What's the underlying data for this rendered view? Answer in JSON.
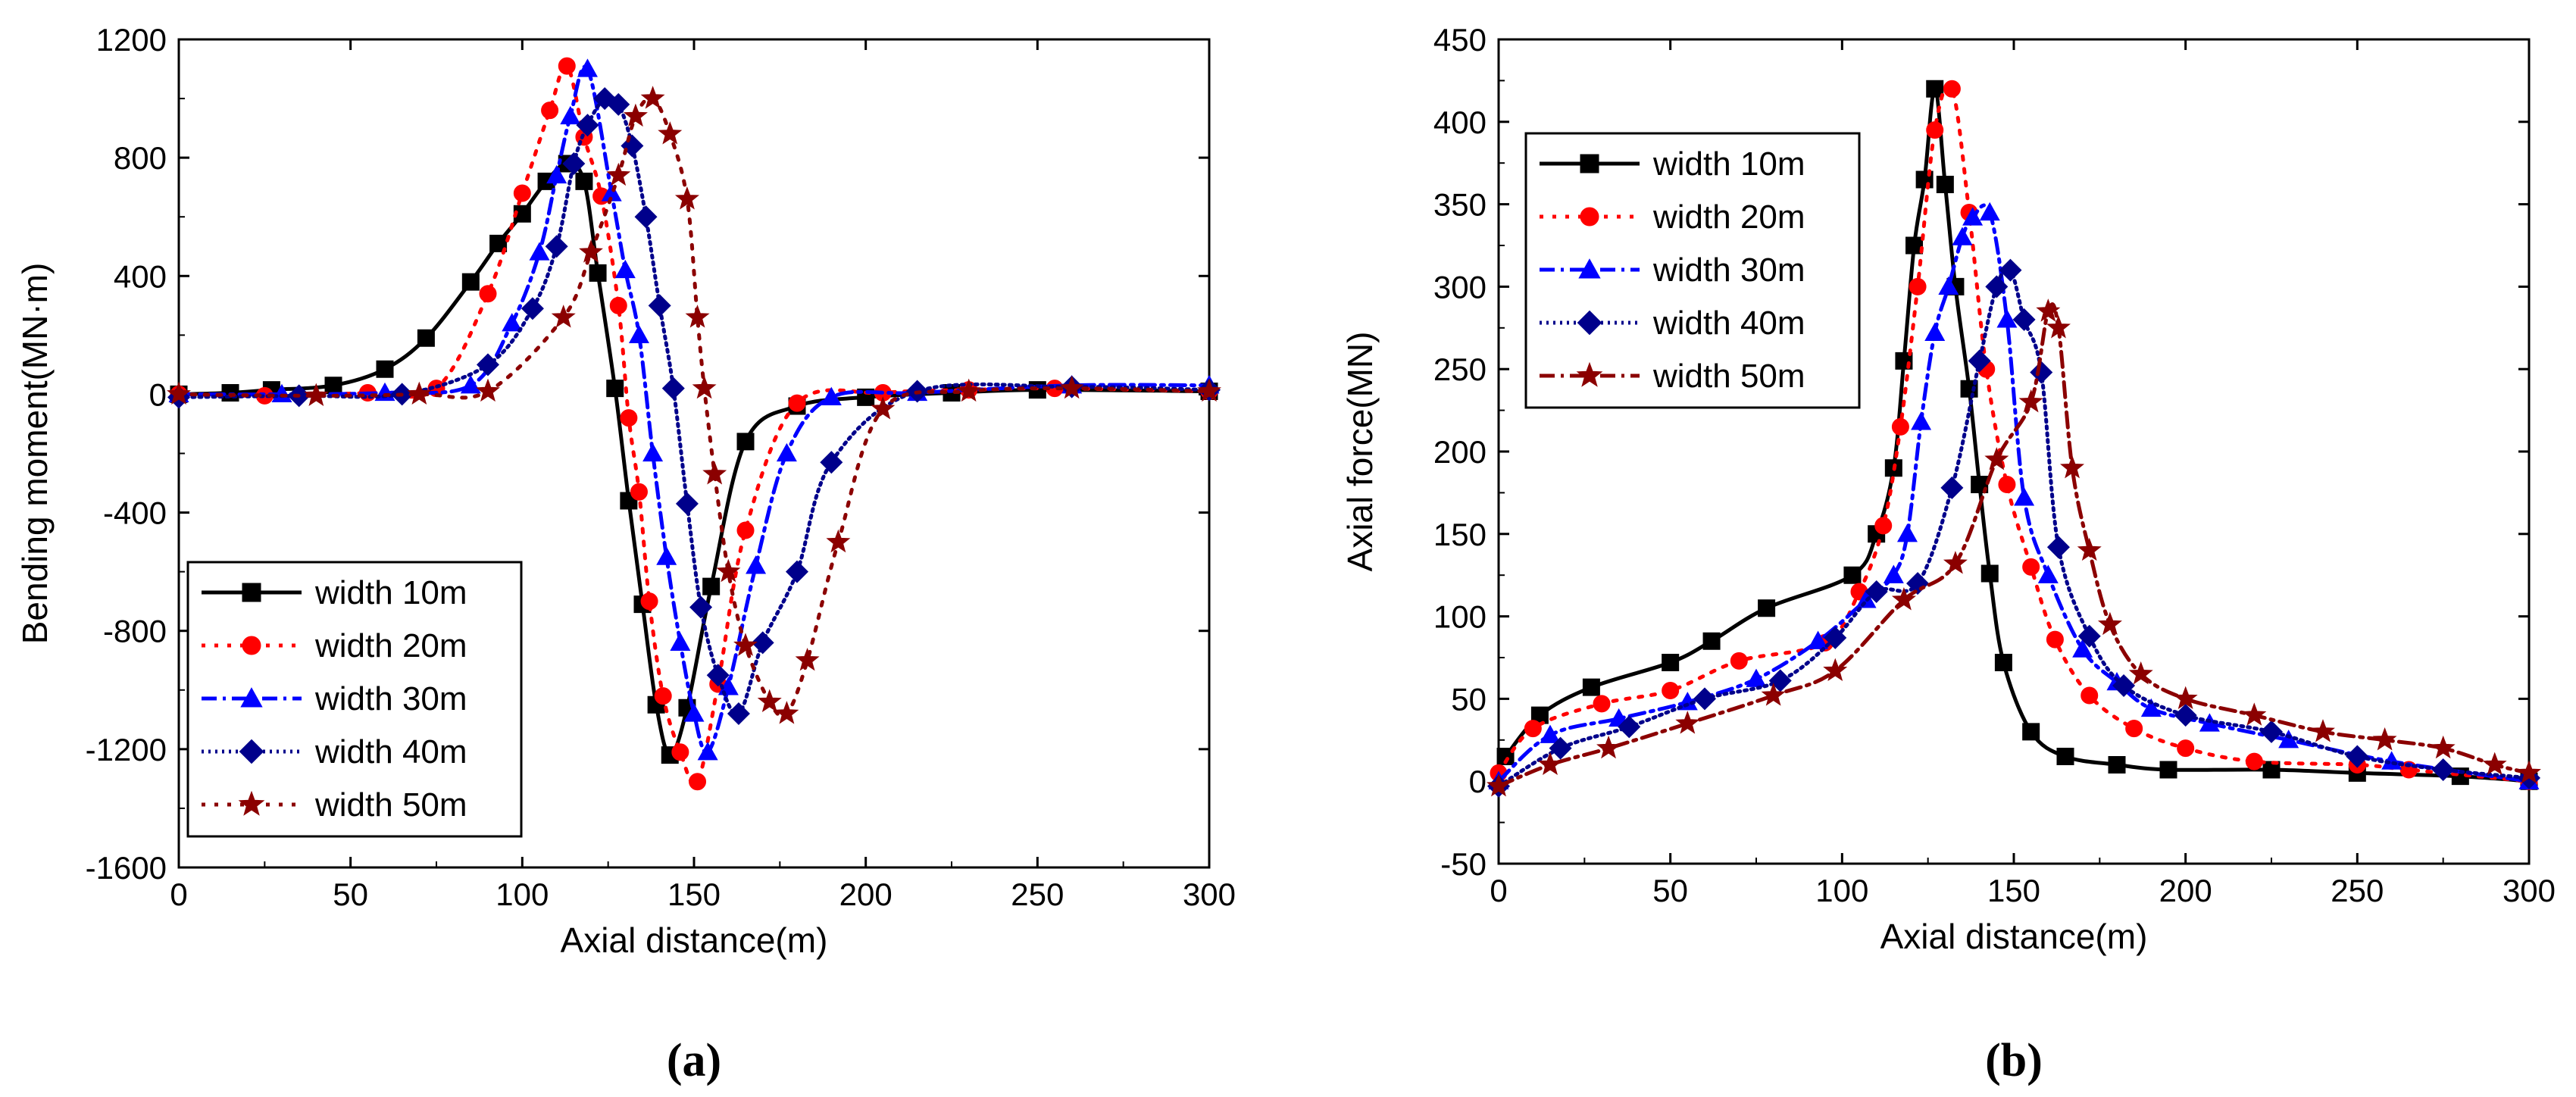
{
  "chart_data": [
    {
      "type": "line",
      "panel_label": "(a)",
      "xlabel": "Axial distance(m)",
      "ylabel": "Bending moment(MN·m)",
      "xlim": [
        0,
        300
      ],
      "ylim": [
        -1600,
        1200
      ],
      "xticks": [
        "0",
        "50",
        "100",
        "150",
        "200",
        "250",
        "300"
      ],
      "yticks": [
        "-1600",
        "-1200",
        "-800",
        "-400",
        "0",
        "400",
        "800",
        "1200"
      ],
      "grid": false,
      "legend_position": "bottom-left",
      "series": [
        {
          "name": "width 10m",
          "color": "#000000",
          "marker": "square",
          "dash": "solid",
          "x": [
            0,
            15,
            27,
            45,
            60,
            72,
            85,
            93,
            100,
            107,
            113,
            118,
            122,
            127,
            131,
            135,
            139,
            143,
            148,
            155,
            165,
            180,
            200,
            225,
            250,
            300
          ],
          "y": [
            0,
            5,
            15,
            30,
            85,
            190,
            380,
            510,
            610,
            720,
            780,
            720,
            410,
            20,
            -360,
            -710,
            -1050,
            -1220,
            -1060,
            -650,
            -160,
            -40,
            -10,
            5,
            15,
            10
          ]
        },
        {
          "name": "width 20m",
          "color": "#ff0000",
          "marker": "circle",
          "dash": "dot",
          "x": [
            0,
            25,
            55,
            75,
            90,
            100,
            108,
            113,
            118,
            123,
            128,
            131,
            134,
            137,
            141,
            146,
            151,
            157,
            165,
            180,
            205,
            230,
            255,
            300
          ],
          "y": [
            0,
            -5,
            5,
            20,
            340,
            680,
            960,
            1110,
            870,
            670,
            300,
            -80,
            -330,
            -700,
            -1020,
            -1210,
            -1310,
            -980,
            -460,
            -30,
            5,
            15,
            20,
            10
          ]
        },
        {
          "name": "width 30m",
          "color": "#0000ff",
          "marker": "triangle",
          "dash": "dashdot",
          "x": [
            0,
            30,
            60,
            85,
            97,
            105,
            110,
            114,
            119,
            126,
            130,
            134,
            138,
            142,
            146,
            150,
            154,
            160,
            168,
            177,
            190,
            215,
            260,
            300
          ],
          "y": [
            0,
            0,
            5,
            30,
            240,
            480,
            740,
            940,
            1100,
            680,
            420,
            200,
            -200,
            -550,
            -840,
            -1080,
            -1210,
            -990,
            -580,
            -200,
            -10,
            5,
            30,
            30
          ]
        },
        {
          "name": "width 40m",
          "color": "#00008b",
          "marker": "diamond",
          "dash": "dense-dot",
          "x": [
            0,
            35,
            65,
            90,
            103,
            110,
            115,
            119,
            124,
            128,
            132,
            136,
            140,
            144,
            148,
            152,
            157,
            163,
            170,
            180,
            190,
            215,
            260,
            300
          ],
          "y": [
            -10,
            -5,
            0,
            100,
            290,
            500,
            780,
            910,
            1000,
            980,
            840,
            600,
            300,
            20,
            -370,
            -720,
            -950,
            -1080,
            -840,
            -600,
            -230,
            10,
            25,
            15
          ]
        },
        {
          "name": "width 50m",
          "color": "#8b0000",
          "marker": "star",
          "dash": "dot",
          "x": [
            0,
            40,
            70,
            90,
            112,
            120,
            128,
            133,
            138,
            143,
            148,
            151,
            153,
            156,
            160,
            165,
            172,
            177,
            183,
            192,
            205,
            230,
            260,
            300
          ],
          "y": [
            0,
            -5,
            0,
            10,
            260,
            480,
            740,
            940,
            1000,
            880,
            660,
            260,
            20,
            -270,
            -600,
            -850,
            -1040,
            -1080,
            -900,
            -500,
            -50,
            10,
            20,
            10
          ]
        }
      ]
    },
    {
      "type": "line",
      "panel_label": "(b)",
      "xlabel": "Axial distance(m)",
      "ylabel": "Axial force(MN)",
      "xlim": [
        0,
        300
      ],
      "ylim": [
        -50,
        450
      ],
      "xticks": [
        "0",
        "50",
        "100",
        "150",
        "200",
        "250",
        "300"
      ],
      "yticks": [
        "-50",
        "0",
        "50",
        "100",
        "150",
        "200",
        "250",
        "300",
        "350",
        "400",
        "450"
      ],
      "grid": false,
      "legend_position": "top-left",
      "series": [
        {
          "name": "width 10m",
          "color": "#000000",
          "marker": "square",
          "dash": "solid",
          "x": [
            2,
            12,
            27,
            50,
            62,
            78,
            103,
            110,
            115,
            118,
            121,
            124,
            127,
            130,
            133,
            137,
            140,
            143,
            147,
            155,
            165,
            180,
            195,
            225,
            250,
            280,
            300
          ],
          "y": [
            15,
            40,
            57,
            72,
            85,
            105,
            125,
            150,
            190,
            255,
            325,
            365,
            420,
            362,
            300,
            238,
            180,
            126,
            72,
            30,
            15,
            10,
            7,
            7,
            5,
            3,
            0
          ]
        },
        {
          "name": "width 20m",
          "color": "#ff0000",
          "marker": "circle",
          "dash": "dot",
          "x": [
            0,
            10,
            30,
            50,
            70,
            95,
            105,
            112,
            117,
            122,
            127,
            132,
            137,
            142,
            148,
            155,
            162,
            172,
            185,
            200,
            220,
            250,
            265,
            300
          ],
          "y": [
            5,
            32,
            47,
            55,
            73,
            84,
            115,
            155,
            215,
            300,
            395,
            420,
            345,
            250,
            180,
            130,
            86,
            52,
            32,
            20,
            12,
            10,
            7,
            0
          ]
        },
        {
          "name": "width 30m",
          "color": "#0000ff",
          "marker": "triangle",
          "dash": "dashdot",
          "x": [
            0,
            15,
            35,
            55,
            75,
            93,
            107,
            115,
            119,
            123,
            127,
            131,
            135,
            138,
            143,
            148,
            153,
            160,
            170,
            180,
            190,
            207,
            230,
            260,
            300
          ],
          "y": [
            0,
            28,
            38,
            48,
            62,
            85,
            110,
            125,
            150,
            218,
            272,
            300,
            330,
            342,
            345,
            280,
            172,
            125,
            80,
            60,
            44,
            35,
            25,
            12,
            0
          ]
        },
        {
          "name": "width 40m",
          "color": "#00008b",
          "marker": "diamond",
          "dash": "dense-dot",
          "x": [
            0,
            18,
            38,
            60,
            82,
            98,
            110,
            122,
            132,
            140,
            145,
            149,
            153,
            158,
            163,
            172,
            182,
            200,
            225,
            250,
            275,
            300
          ],
          "y": [
            -3,
            20,
            33,
            50,
            61,
            87,
            115,
            120,
            178,
            255,
            300,
            310,
            280,
            248,
            142,
            88,
            58,
            40,
            30,
            15,
            7,
            2
          ]
        },
        {
          "name": "width 50m",
          "color": "#8b0000",
          "marker": "star",
          "dash": "dashdot",
          "x": [
            0,
            15,
            32,
            55,
            80,
            98,
            118,
            133,
            145,
            155,
            160,
            163,
            167,
            172,
            178,
            187,
            200,
            220,
            240,
            258,
            275,
            290,
            300
          ],
          "y": [
            -3,
            10,
            20,
            35,
            52,
            67,
            110,
            132,
            195,
            230,
            285,
            275,
            190,
            140,
            95,
            65,
            50,
            40,
            30,
            25,
            20,
            10,
            5
          ]
        }
      ]
    }
  ]
}
